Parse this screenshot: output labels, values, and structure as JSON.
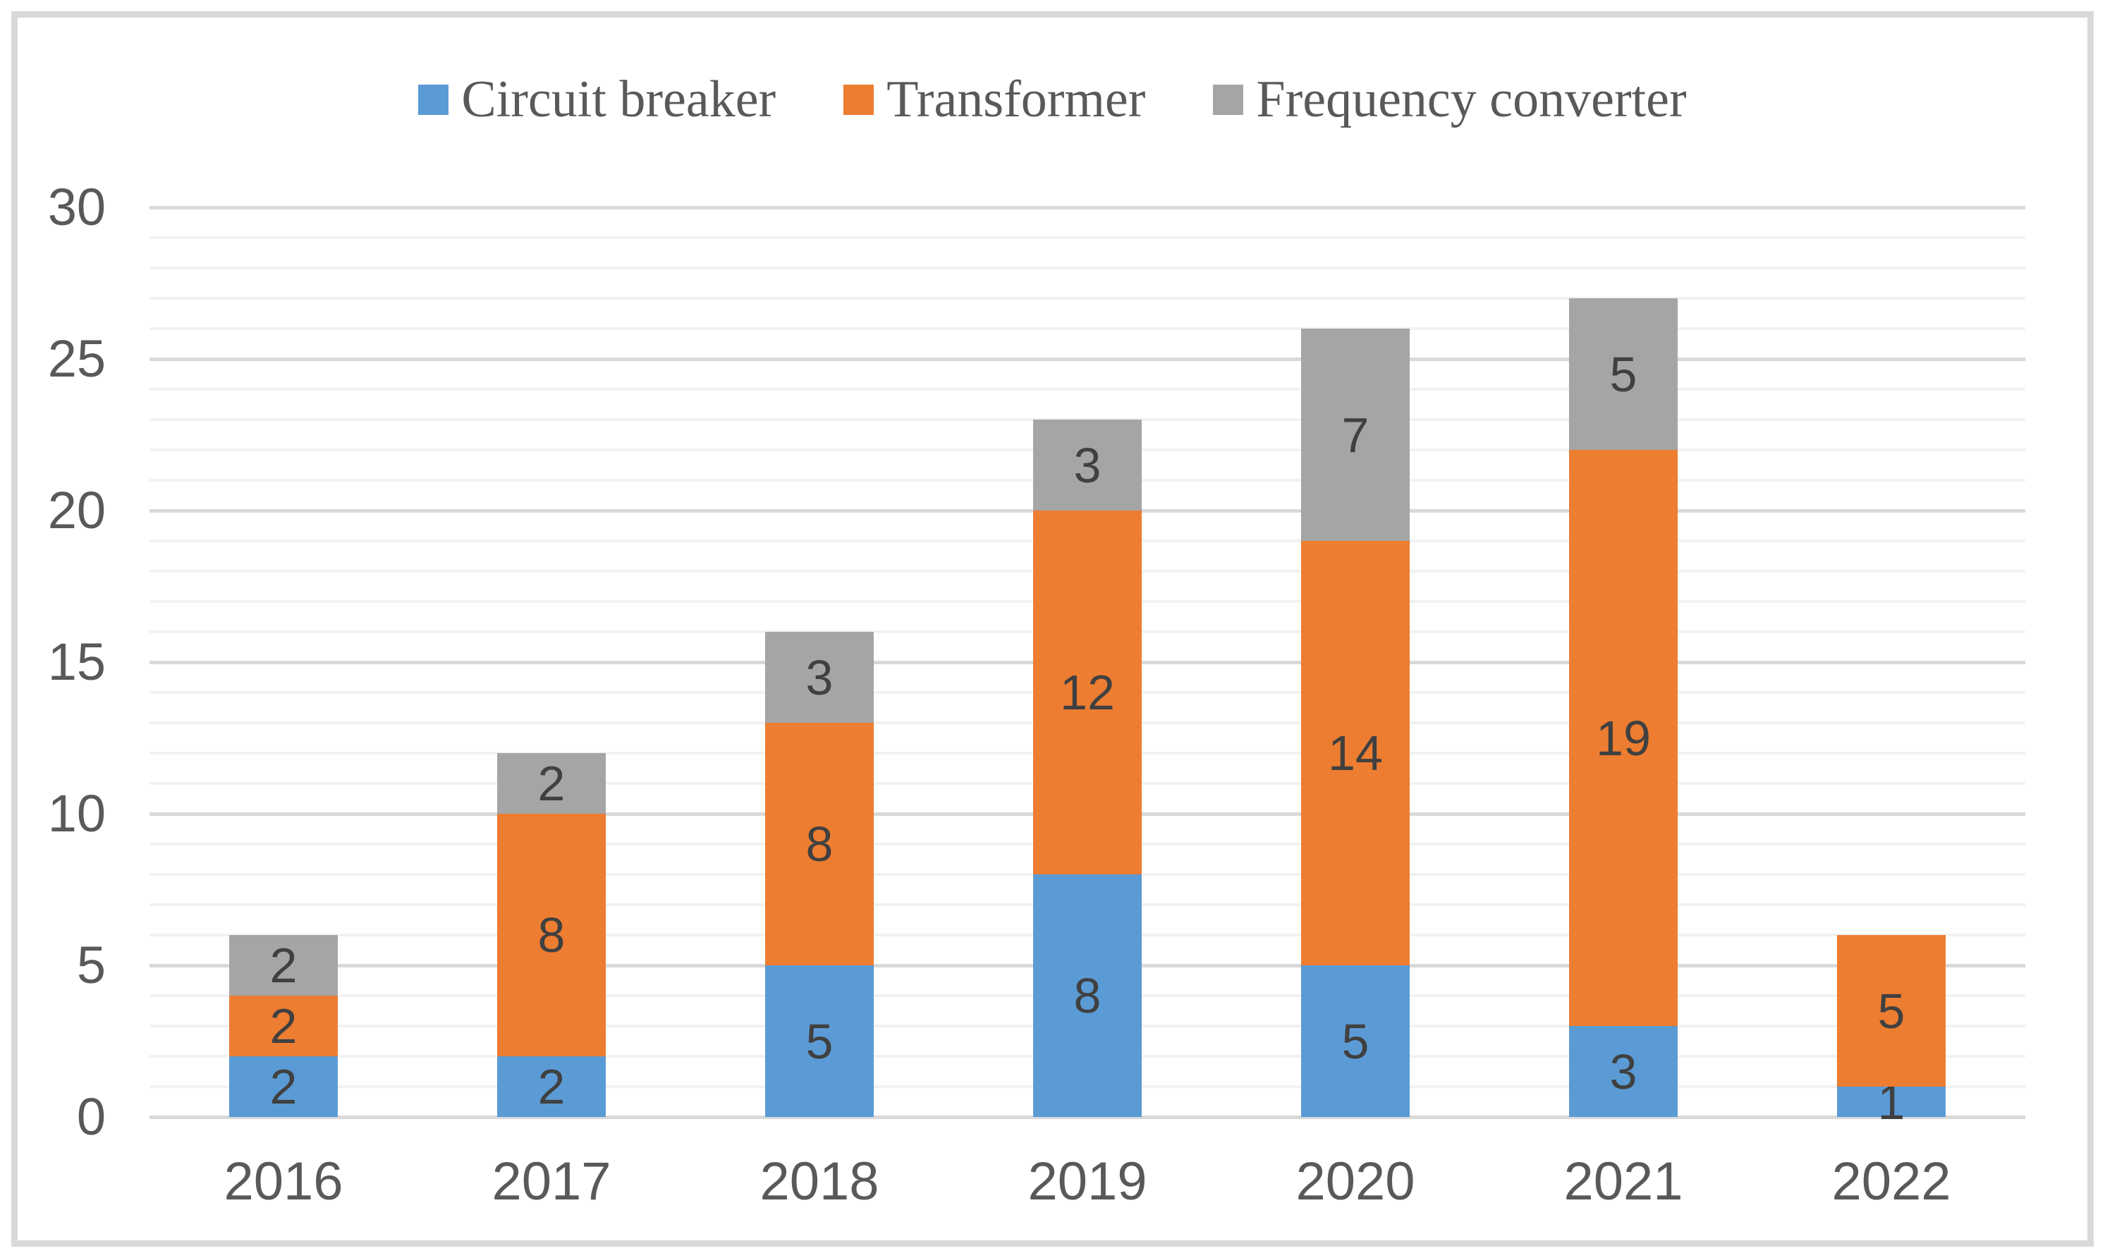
{
  "figure": {
    "background": "#ffffff",
    "border_color": "#d9d9d9"
  },
  "chart_data": {
    "type": "bar",
    "stacked": true,
    "title": "",
    "xlabel": "",
    "ylabel": "",
    "categories": [
      "2016",
      "2017",
      "2018",
      "2019",
      "2020",
      "2021",
      "2022"
    ],
    "series": [
      {
        "name": "Circuit breaker",
        "color": "#5b9bd5",
        "values": [
          2,
          2,
          5,
          8,
          5,
          3,
          1
        ]
      },
      {
        "name": "Transformer",
        "color": "#ed7d31",
        "values": [
          2,
          8,
          8,
          12,
          14,
          19,
          5
        ]
      },
      {
        "name": "Frequency converter",
        "color": "#a5a5a5",
        "values": [
          2,
          2,
          3,
          3,
          7,
          5,
          0
        ]
      }
    ],
    "ylim": [
      0,
      30
    ],
    "y_major_ticks": [
      0,
      5,
      10,
      15,
      20,
      25,
      30
    ],
    "y_minor_unit": 1,
    "grid": true,
    "legend_position": "top",
    "data_labels_shown": true,
    "colors": {
      "axis_text": "#595959",
      "data_label": "#404040",
      "gridline_major": "#d9d9d9",
      "gridline_minor": "#f2f2f2"
    }
  }
}
